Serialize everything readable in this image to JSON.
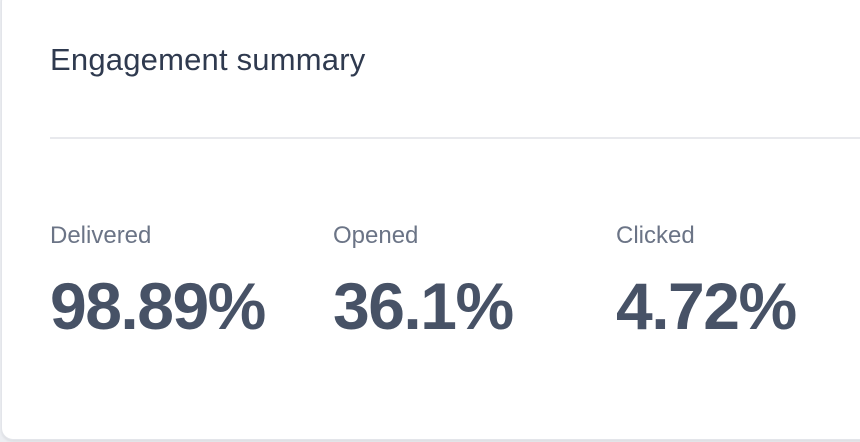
{
  "card": {
    "title": "Engagement summary",
    "stats": [
      {
        "label": "Delivered",
        "value": "98.89%"
      },
      {
        "label": "Opened",
        "value": "36.1%"
      },
      {
        "label": "Clicked",
        "value": "4.72%"
      }
    ]
  }
}
